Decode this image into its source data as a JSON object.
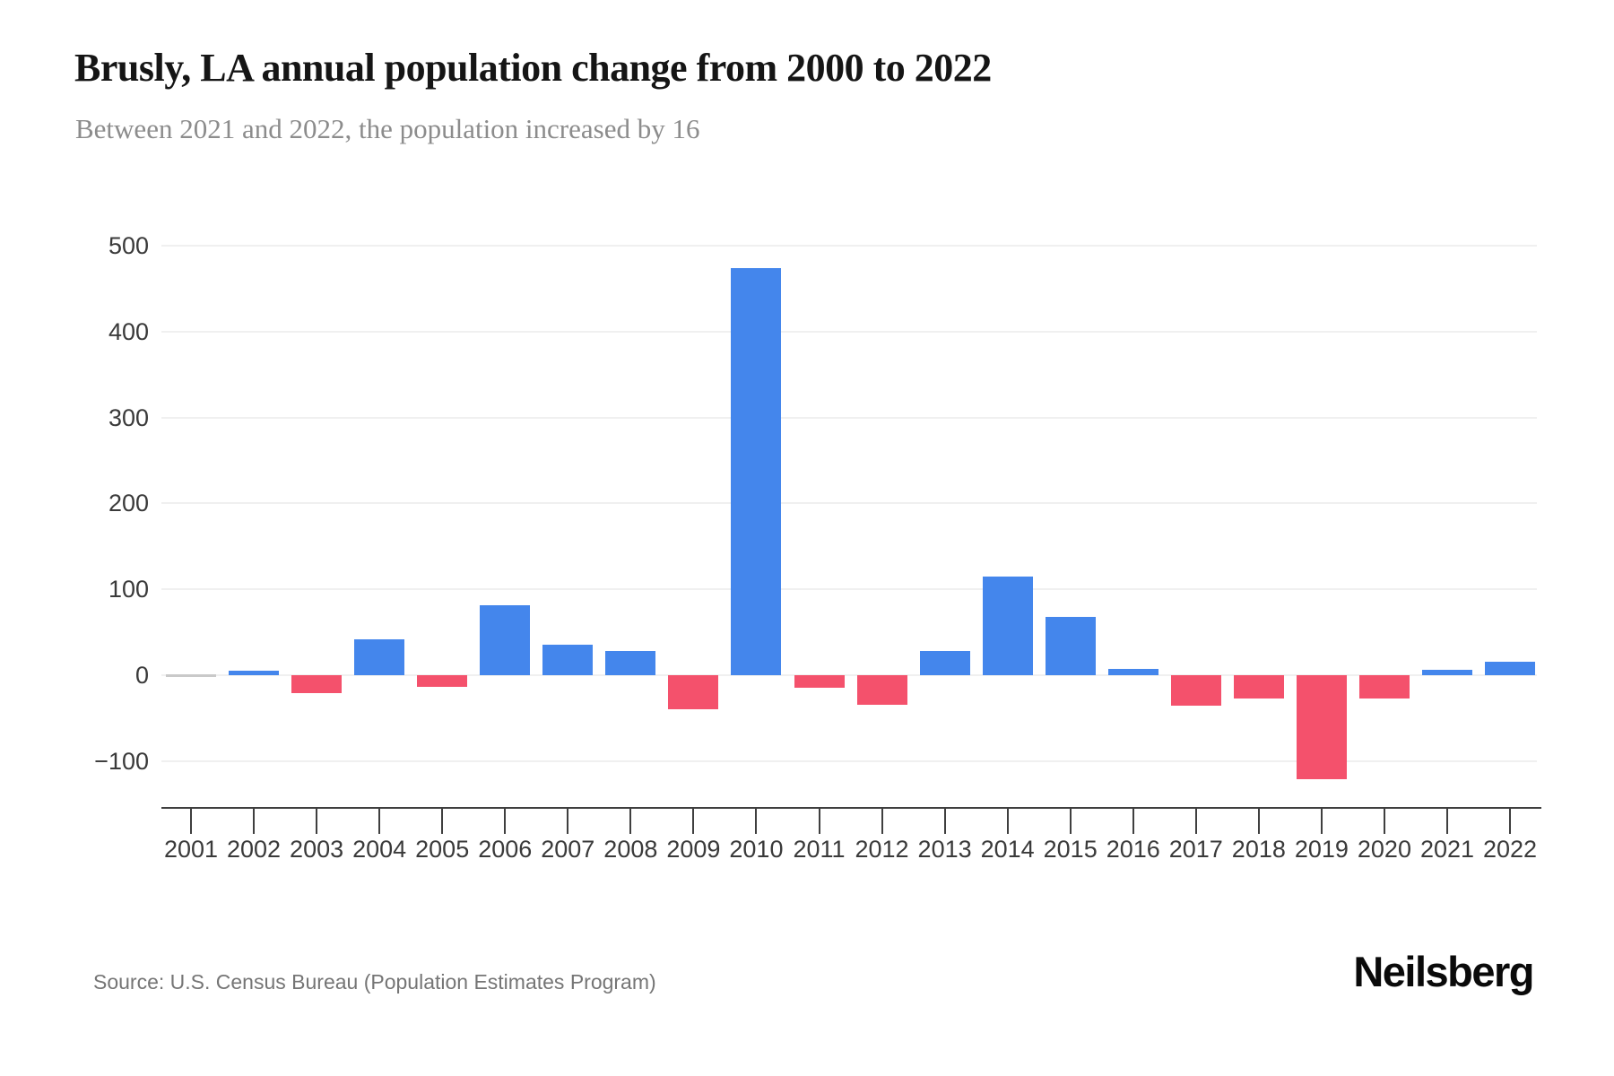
{
  "header": {
    "title": "Brusly, LA annual population change from 2000 to 2022",
    "subtitle": "Between 2021 and 2022, the population increased by 16"
  },
  "footer": {
    "source": "Source: U.S. Census Bureau (Population Estimates Program)",
    "brand": "Neilsberg"
  },
  "chart_data": {
    "type": "bar",
    "title": "Brusly, LA annual population change from 2000 to 2022",
    "subtitle": "Between 2021 and 2022, the population increased by 16",
    "categories": [
      "2001",
      "2002",
      "2003",
      "2004",
      "2005",
      "2006",
      "2007",
      "2008",
      "2009",
      "2010",
      "2011",
      "2012",
      "2013",
      "2014",
      "2015",
      "2016",
      "2017",
      "2018",
      "2019",
      "2020",
      "2021",
      "2022"
    ],
    "values": [
      0,
      5,
      -21,
      42,
      -14,
      81,
      35,
      28,
      -40,
      474,
      -15,
      -34,
      28,
      115,
      68,
      7,
      -36,
      -27,
      -121,
      -27,
      6,
      16
    ],
    "xlabel": "",
    "ylabel": "",
    "ylim": [
      -100,
      500
    ],
    "yticks": [
      500,
      400,
      300,
      200,
      100,
      0,
      -100
    ],
    "grid": "horizontal",
    "legend": "none",
    "colors": {
      "positive": "#4486ec",
      "negative": "#f4516c",
      "zero": "#c9c9c9",
      "gridline": "#f0f0f0",
      "axis": "#3f3f3f",
      "tick_label": "#3a3a3a",
      "title_text": "#151515",
      "subtitle_text": "#8c8c8c",
      "source_text": "#757575",
      "brand_text": "#0a0a0a"
    }
  }
}
